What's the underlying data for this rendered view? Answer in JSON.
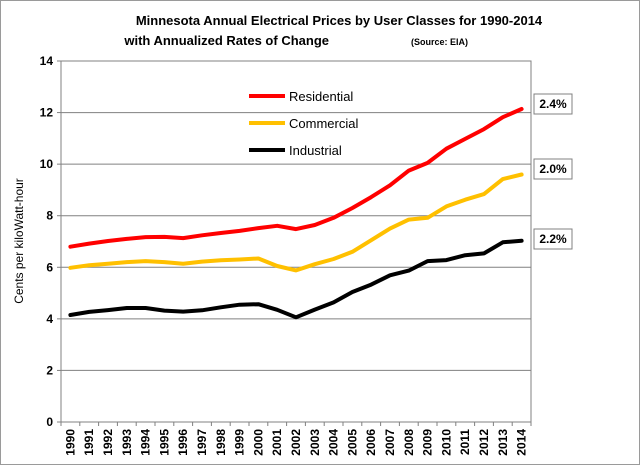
{
  "chart_data": {
    "type": "line",
    "title_line1": "Minnesota Annual Electrical Prices by User Classes for 1990-2014",
    "title_line2": "with Annualized Rates of Change",
    "source_note": "(Source: EIA)",
    "ylabel": "Cents per kiloWatt-hour",
    "xlabel": "",
    "ylim": [
      0,
      14
    ],
    "yticks": [
      "0",
      "2",
      "4",
      "6",
      "8",
      "10",
      "12",
      "14"
    ],
    "grid": true,
    "legend_position": "top-center",
    "x": [
      "1990",
      "1991",
      "1992",
      "1993",
      "1994",
      "1995",
      "1996",
      "1997",
      "1998",
      "1999",
      "2000",
      "2001",
      "2002",
      "2003",
      "2004",
      "2005",
      "2006",
      "2007",
      "2008",
      "2009",
      "2010",
      "2011",
      "2012",
      "2013",
      "2014"
    ],
    "series": [
      {
        "name": "Residential",
        "color": "#ff0000",
        "rate_label": "2.4%",
        "values": [
          6.8,
          6.92,
          7.02,
          7.1,
          7.17,
          7.18,
          7.13,
          7.24,
          7.33,
          7.41,
          7.52,
          7.61,
          7.48,
          7.64,
          7.92,
          8.3,
          8.72,
          9.18,
          9.75,
          10.05,
          10.6,
          10.98,
          11.36,
          11.82,
          12.14
        ]
      },
      {
        "name": "Commercial",
        "color": "#ffc000",
        "rate_label": "2.0%",
        "values": [
          5.98,
          6.08,
          6.14,
          6.2,
          6.24,
          6.2,
          6.14,
          6.22,
          6.27,
          6.3,
          6.34,
          6.05,
          5.88,
          6.12,
          6.32,
          6.6,
          7.05,
          7.5,
          7.85,
          7.92,
          8.36,
          8.62,
          8.84,
          9.42,
          9.6
        ]
      },
      {
        "name": "Industrial",
        "color": "#000000",
        "rate_label": "2.2%",
        "values": [
          4.15,
          4.27,
          4.34,
          4.42,
          4.42,
          4.32,
          4.28,
          4.33,
          4.45,
          4.55,
          4.57,
          4.35,
          4.06,
          4.36,
          4.64,
          5.04,
          5.33,
          5.69,
          5.87,
          6.24,
          6.28,
          6.47,
          6.54,
          6.97,
          7.03
        ]
      }
    ]
  }
}
